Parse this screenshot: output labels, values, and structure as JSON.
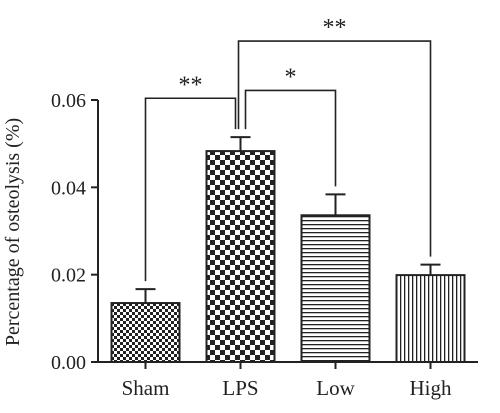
{
  "chart_data": {
    "type": "bar",
    "categories": [
      "Sham",
      "LPS",
      "Low",
      "High"
    ],
    "values": [
      0.0135,
      0.0483,
      0.0336,
      0.0199
    ],
    "errors": [
      0.0032,
      0.0032,
      0.0048,
      0.0024
    ],
    "patterns": [
      "fine-checker",
      "large-checker",
      "horizontal-lines",
      "vertical-lines"
    ],
    "xlabel": "",
    "ylabel": "Percentage of osteolysis (%)",
    "ylim": [
      0,
      0.06
    ],
    "yticks": [
      0.0,
      0.02,
      0.04,
      0.06
    ],
    "ytick_labels": [
      "0.00",
      "0.02",
      "0.04",
      "0.06"
    ],
    "grid": false,
    "significance": [
      {
        "from": "Sham",
        "to": "LPS",
        "label": "**"
      },
      {
        "from": "LPS",
        "to": "Low",
        "label": "*"
      },
      {
        "from": "LPS",
        "to": "High",
        "label": "**"
      }
    ]
  }
}
